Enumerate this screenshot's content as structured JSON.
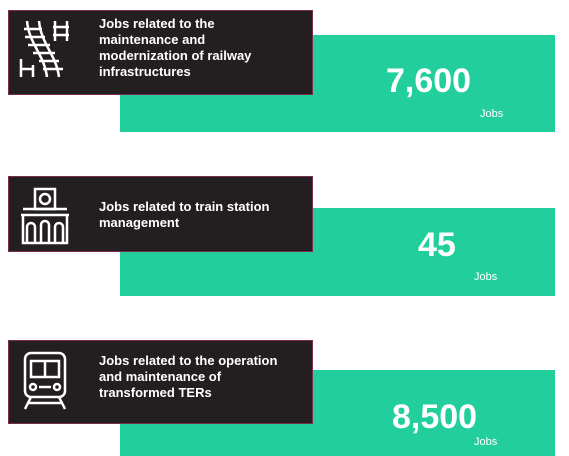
{
  "items": [
    {
      "label_lines": [
        "Jobs related to the",
        "maintenance and",
        "modernization of railway",
        "infrastructures"
      ],
      "value": "7,600",
      "unit": "Jobs"
    },
    {
      "label_lines": [
        "Jobs related to train station",
        "management"
      ],
      "value": "45",
      "unit": "Jobs"
    },
    {
      "label_lines": [
        "Jobs related to the operation",
        "and maintenance of",
        "transformed TERs"
      ],
      "value": "8,500",
      "unit": "Jobs"
    }
  ]
}
